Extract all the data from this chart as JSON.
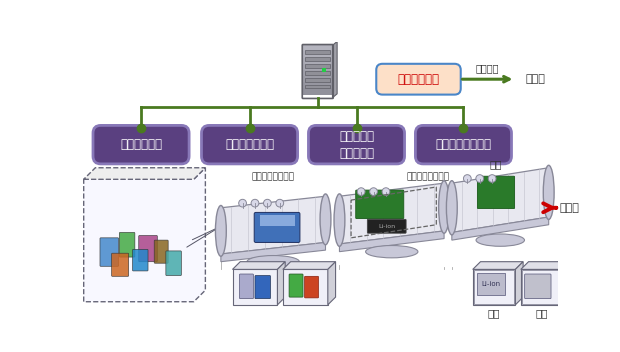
{
  "bg_color": "#ffffff",
  "tree_line_color": "#4a7a20",
  "control_box": {
    "facecolor": "#fde0c8",
    "edgecolor": "#4a86c8",
    "text": "製品選別制御",
    "text_color": "#cc0000",
    "fontsize": 8.5
  },
  "boxes": [
    {
      "text": "廃製品供給機",
      "facecolor": "#5a4080",
      "edgecolor": "#8878b8",
      "text_color": "#ffffff",
      "fontsize": 8.5
    },
    {
      "text": "製品選別ソータ",
      "facecolor": "#5a4080",
      "edgecolor": "#8878b8",
      "text_color": "#ffffff",
      "fontsize": 8.5
    },
    {
      "text": "易解体加工\n筐体解体機",
      "facecolor": "#5a4080",
      "edgecolor": "#8878b8",
      "text_color": "#ffffff",
      "fontsize": 8.5
    },
    {
      "text": "モジュールソータ",
      "facecolor": "#5a4080",
      "edgecolor": "#8878b8",
      "text_color": "#ffffff",
      "fontsize": 8.5
    }
  ],
  "sensor_label": "高解像度センサ群",
  "conveyor_fc": "#e8e8f0",
  "conveyor_ec": "#888898",
  "roller_fc": "#c8c8d8",
  "supply_ec": "#666678",
  "bin_fc": "#f0f0f8",
  "bin_ec": "#666678"
}
